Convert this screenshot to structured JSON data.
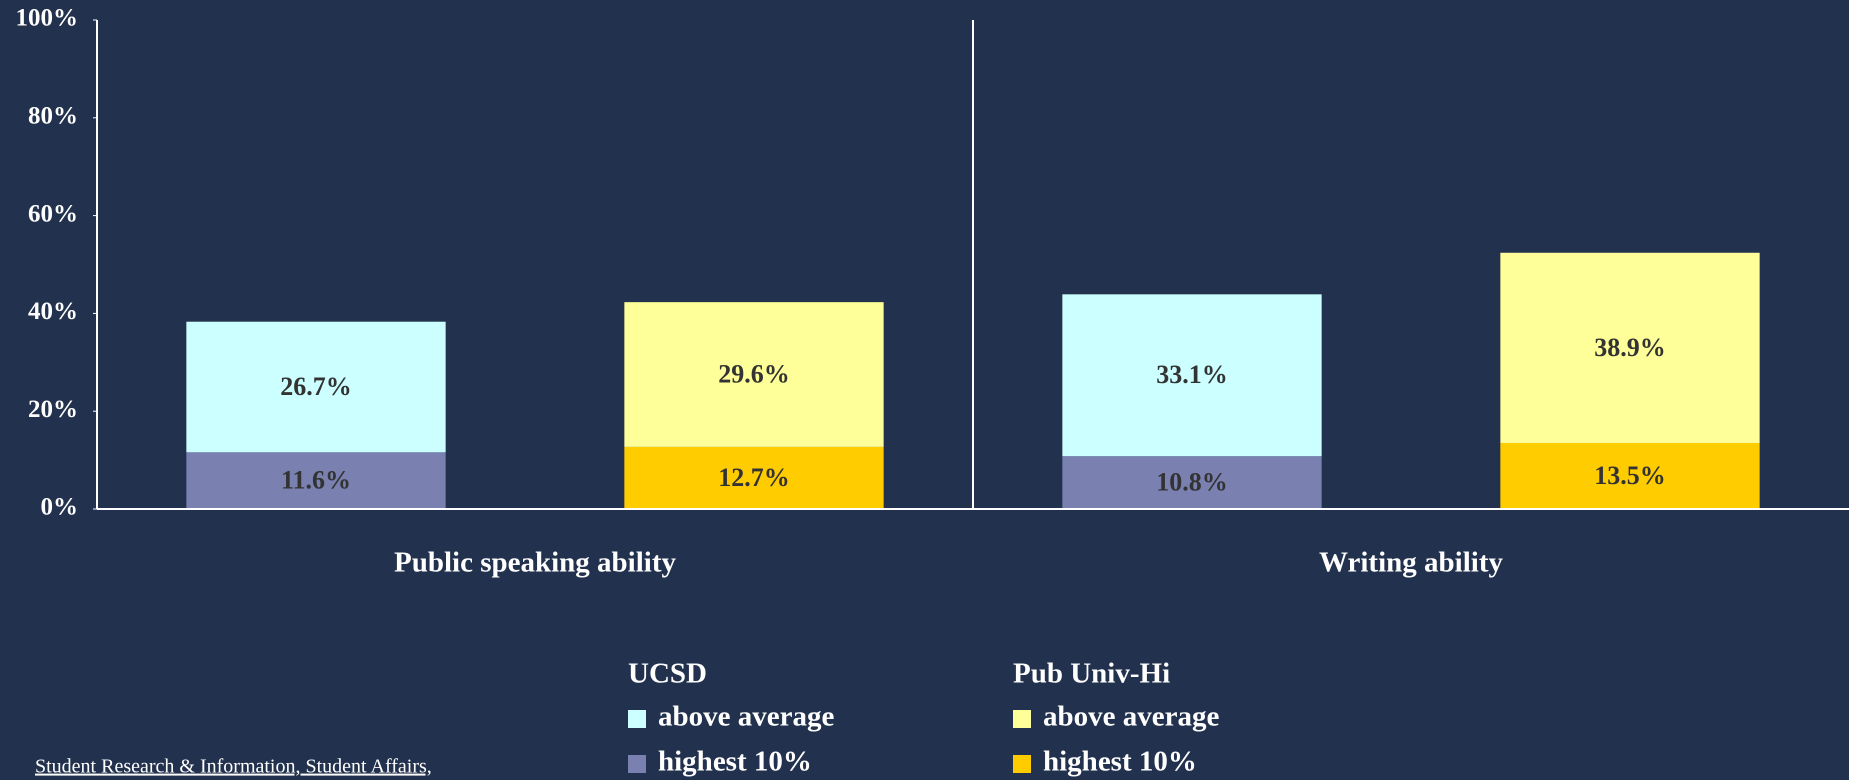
{
  "chart_data": {
    "type": "stacked_bar",
    "categories": [
      "Public speaking ability",
      "Writing ability"
    ],
    "groups": [
      {
        "name": "UCSD",
        "series": [
          {
            "name": "highest 10%",
            "color": "#7a80b0",
            "values": [
              11.6,
              10.8
            ],
            "value_labels": [
              "11.6%",
              "10.8%"
            ]
          },
          {
            "name": "above average",
            "color": "#ccffff",
            "values": [
              26.7,
              33.1
            ],
            "value_labels": [
              "26.7%",
              "33.1%"
            ]
          }
        ]
      },
      {
        "name": "Pub Univ-Hi",
        "series": [
          {
            "name": "highest 10%",
            "color": "#ffcc00",
            "values": [
              12.7,
              13.5
            ],
            "value_labels": [
              "12.7%",
              "13.5%"
            ]
          },
          {
            "name": "above average",
            "color": "#ffff99",
            "values": [
              29.6,
              38.9
            ],
            "value_labels": [
              "29.6%",
              "38.9%"
            ]
          }
        ]
      }
    ],
    "ylim": [
      0,
      100
    ],
    "yticks": [
      {
        "value": 0,
        "label": "0%"
      },
      {
        "value": 20,
        "label": "20%"
      },
      {
        "value": 40,
        "label": "40%"
      },
      {
        "value": 60,
        "label": "60%"
      },
      {
        "value": 80,
        "label": "80%"
      },
      {
        "value": 100,
        "label": "100%"
      }
    ],
    "source": "Student Research & Information, Student Affairs,"
  }
}
